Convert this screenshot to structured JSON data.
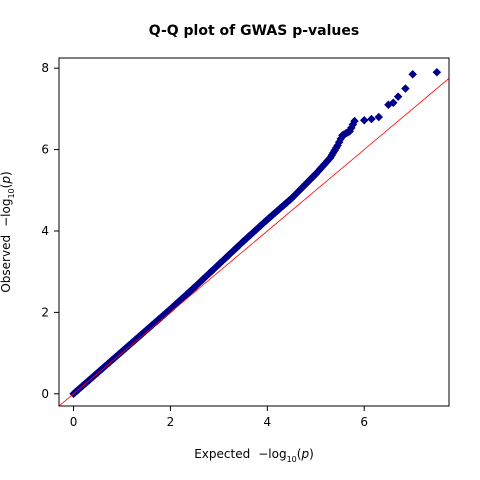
{
  "chart_data": {
    "type": "scatter",
    "title": "Q-Q plot of GWAS p-values",
    "xlabel": {
      "prefix": "Expected",
      "minus": "−log",
      "sub": "10",
      "open": "(",
      "var": "p",
      "close": ")"
    },
    "ylabel": {
      "prefix": "Observed",
      "minus": "−log",
      "sub": "10",
      "open": "(",
      "var": "p",
      "close": ")"
    },
    "xlim": [
      -0.3,
      7.75
    ],
    "ylim": [
      -0.3,
      8.25
    ],
    "x_ticks": [
      0,
      2,
      4,
      6
    ],
    "y_ticks": [
      0,
      2,
      4,
      6,
      8
    ],
    "x_tick_labels": [
      "0",
      "2",
      "4",
      "6"
    ],
    "y_tick_labels": [
      "0",
      "2",
      "4",
      "6",
      "8"
    ],
    "grid": false,
    "reference_line": {
      "slope": 1,
      "intercept": 0,
      "color": "#ff0000"
    },
    "series": [
      {
        "color": "#00008b",
        "marker": "diamond",
        "points": [
          [
            0.0,
            0.0
          ],
          [
            0.5,
            0.52
          ],
          [
            1.0,
            1.04
          ],
          [
            1.5,
            1.56
          ],
          [
            2.0,
            2.08
          ],
          [
            2.5,
            2.62
          ],
          [
            3.0,
            3.18
          ],
          [
            3.5,
            3.74
          ],
          [
            4.0,
            4.28
          ],
          [
            4.5,
            4.8
          ],
          [
            5.0,
            5.4
          ],
          [
            5.3,
            5.8
          ],
          [
            5.45,
            6.1
          ],
          [
            5.55,
            6.35
          ],
          [
            5.7,
            6.45
          ],
          [
            5.8,
            6.7
          ],
          [
            6.0,
            6.72
          ],
          [
            6.15,
            6.75
          ],
          [
            6.3,
            6.8
          ],
          [
            6.5,
            7.1
          ],
          [
            6.6,
            7.15
          ],
          [
            6.7,
            7.3
          ],
          [
            6.85,
            7.5
          ],
          [
            7.0,
            7.85
          ],
          [
            7.5,
            7.9
          ]
        ]
      }
    ]
  }
}
